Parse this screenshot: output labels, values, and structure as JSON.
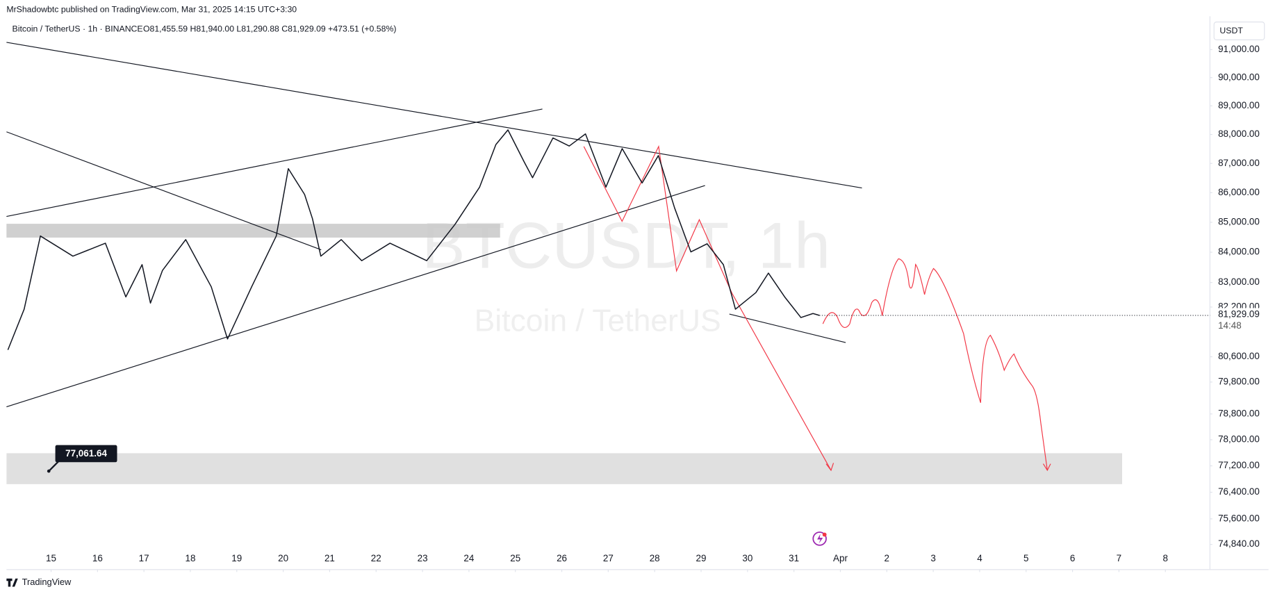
{
  "header": {
    "publisher": "MrShadowbtc published on TradingView.com, Mar 31, 2025 14:15 UTC+3:30",
    "symbol": "Bitcoin / TetherUS · 1h · BINANCE",
    "ohlc": "O81,455.59 H81,940.00 L81,290.88 C81,929.09 +473.51 (+0.58%)",
    "currency": "USDT",
    "last_price": "81,929.09",
    "countdown": "14:48",
    "watermark_symbol": "BTCUSDT, 1h",
    "watermark_name": "Bitcoin / TetherUS",
    "target_label": "77,061.64",
    "footer_brand": "TradingView"
  },
  "chart_data": {
    "type": "line",
    "log_scale": true,
    "grid": false,
    "color": "#131722",
    "xlim": [
      -0.96,
      24.96
    ],
    "xticks": [
      {
        "value": 0,
        "label": "15"
      },
      {
        "value": 1,
        "label": "16"
      },
      {
        "value": 2,
        "label": "17"
      },
      {
        "value": 3,
        "label": "18"
      },
      {
        "value": 4,
        "label": "19"
      },
      {
        "value": 5,
        "label": "20"
      },
      {
        "value": 6,
        "label": "21"
      },
      {
        "value": 7,
        "label": "22"
      },
      {
        "value": 8,
        "label": "23"
      },
      {
        "value": 9,
        "label": "24"
      },
      {
        "value": 10,
        "label": "25"
      },
      {
        "value": 11,
        "label": "26"
      },
      {
        "value": 12,
        "label": "27"
      },
      {
        "value": 13,
        "label": "28"
      },
      {
        "value": 14,
        "label": "29"
      },
      {
        "value": 15,
        "label": "30"
      },
      {
        "value": 16,
        "label": "31"
      },
      {
        "value": 17,
        "label": "Apr"
      },
      {
        "value": 18,
        "label": "2"
      },
      {
        "value": 19,
        "label": "3"
      },
      {
        "value": 20,
        "label": "4"
      },
      {
        "value": 21,
        "label": "5"
      },
      {
        "value": 22,
        "label": "6"
      },
      {
        "value": 23,
        "label": "7"
      },
      {
        "value": 24,
        "label": "8"
      }
    ],
    "ylim": [
      74100,
      91470
    ],
    "yticks": [
      {
        "value": 91000,
        "label": "91,000.00"
      },
      {
        "value": 90000,
        "label": "90,000.00"
      },
      {
        "value": 89000,
        "label": "89,000.00"
      },
      {
        "value": 88000,
        "label": "88,000.00"
      },
      {
        "value": 87000,
        "label": "87,000.00"
      },
      {
        "value": 86000,
        "label": "86,000.00"
      },
      {
        "value": 85000,
        "label": "85,000.00"
      },
      {
        "value": 84000,
        "label": "84,000.00"
      },
      {
        "value": 83000,
        "label": "83,000.00"
      },
      {
        "value": 82200,
        "label": "82,200.00"
      },
      {
        "value": 80600,
        "label": "80,600.00"
      },
      {
        "value": 79800,
        "label": "79,800.00"
      },
      {
        "value": 78800,
        "label": "78,800.00"
      },
      {
        "value": 78000,
        "label": "78,000.00"
      },
      {
        "value": 77200,
        "label": "77,200.00"
      },
      {
        "value": 76400,
        "label": "76,400.00"
      },
      {
        "value": 75600,
        "label": "75,600.00"
      },
      {
        "value": 74840,
        "label": "74,840.00"
      }
    ],
    "x": [
      -0.93,
      -0.58,
      -0.23,
      0.47,
      1.17,
      1.61,
      1.96,
      2.14,
      2.4,
      2.9,
      3.45,
      3.8,
      4.32,
      4.85,
      5.11,
      5.46,
      5.63,
      5.81,
      6.25,
      6.69,
      7.3,
      8.09,
      8.7,
      9.23,
      9.58,
      9.84,
      10.19,
      10.37,
      10.81,
      11.16,
      11.51,
      11.95,
      12.3,
      12.73,
      13.08,
      13.43,
      13.78,
      14.13,
      14.48,
      14.74,
      15.18,
      15.45,
      15.8,
      16.15,
      16.41,
      16.55
    ],
    "values": [
      80820,
      82130,
      84540,
      83870,
      84300,
      82530,
      83590,
      82330,
      83400,
      84420,
      82860,
      81170,
      82860,
      84540,
      86820,
      85940,
      85120,
      83870,
      84420,
      83720,
      84300,
      83720,
      84930,
      86190,
      87650,
      88160,
      87050,
      86510,
      87880,
      87600,
      88020,
      86190,
      87510,
      86330,
      87270,
      85480,
      84010,
      84280,
      83590,
      82130,
      82670,
      83310,
      82530,
      81860,
      81990,
      81929.09
    ]
  }
}
